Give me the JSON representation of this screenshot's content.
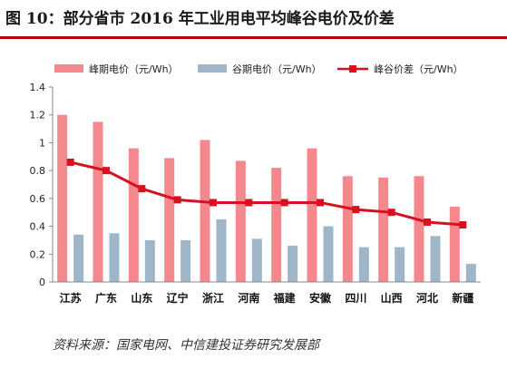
{
  "title": "图 10：部分省市 2016 年工业用电平均峰谷电价及价差",
  "source": "资料来源：国家电网、中信建投证券研究发展部",
  "colors": {
    "peak": "#f4898d",
    "valley": "#9fb5c8",
    "spread": "#d7111f",
    "title_rule": "#c00000",
    "axis": "#888888"
  },
  "chart_data": {
    "type": "bar",
    "categories": [
      "江苏",
      "广东",
      "山东",
      "辽宁",
      "浙江",
      "河南",
      "福建",
      "安徽",
      "四川",
      "山西",
      "河北",
      "新疆"
    ],
    "ylim": [
      0,
      1.4
    ],
    "yticks": [
      "0",
      "0.2",
      "0.4",
      "0.6",
      "0.8",
      "1",
      "1.2",
      "1.4"
    ],
    "legend_position": "top",
    "grid": false,
    "series": [
      {
        "name": "峰期电价（元/Wh）",
        "type": "bar",
        "color": "#f4898d",
        "values": [
          1.2,
          1.15,
          0.96,
          0.89,
          1.02,
          0.87,
          0.82,
          0.96,
          0.76,
          0.75,
          0.76,
          0.54
        ]
      },
      {
        "name": "谷期电价（元/Wh）",
        "type": "bar",
        "color": "#9fb5c8",
        "values": [
          0.34,
          0.35,
          0.3,
          0.3,
          0.45,
          0.31,
          0.26,
          0.4,
          0.25,
          0.25,
          0.33,
          0.13
        ]
      },
      {
        "name": "峰谷价差（元/Wh）",
        "type": "line",
        "color": "#d7111f",
        "values": [
          0.86,
          0.8,
          0.67,
          0.59,
          0.57,
          0.57,
          0.57,
          0.57,
          0.52,
          0.5,
          0.43,
          0.41
        ]
      }
    ]
  }
}
